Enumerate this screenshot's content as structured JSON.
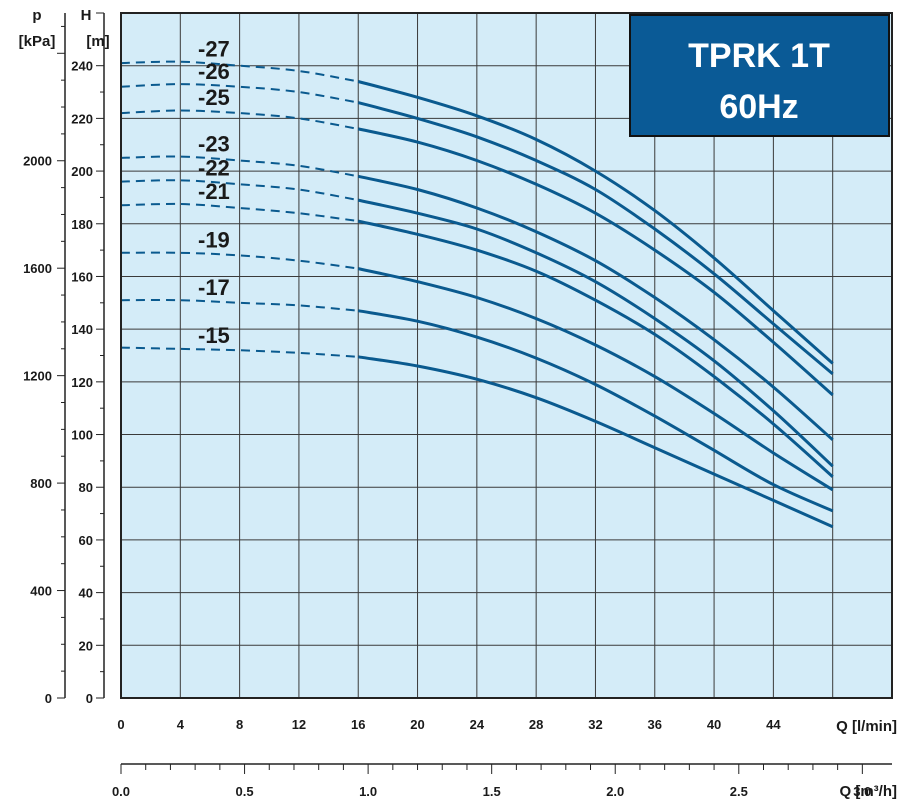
{
  "chart_data": {
    "type": "line",
    "title_lines": [
      "TPRK 1T",
      "60Hz"
    ],
    "x_axis": {
      "label": "Q [l/min]",
      "range": [
        0,
        52
      ],
      "ticks": [
        0,
        4,
        8,
        12,
        16,
        20,
        24,
        28,
        32,
        36,
        40,
        44
      ]
    },
    "x2_axis": {
      "label": "Q [m³/h]",
      "range": [
        0,
        3.12
      ],
      "ticks": [
        "0.0",
        "0.5",
        "1.0",
        "1.5",
        "2.0",
        "2.5",
        "3.0"
      ],
      "tick_values": [
        0,
        0.5,
        1.0,
        1.5,
        2.0,
        2.5,
        3.0
      ]
    },
    "y_axis": {
      "label_line1": "H",
      "label_line2": "[m]",
      "range": [
        0,
        260
      ],
      "ticks": [
        0,
        20,
        40,
        60,
        80,
        100,
        120,
        140,
        160,
        180,
        200,
        220,
        240
      ]
    },
    "y2_axis": {
      "label_line1": "p",
      "label_line2": "[kPa]",
      "range": [
        0,
        2550
      ],
      "ticks": [
        0,
        400,
        800,
        1200,
        1600,
        2000
      ]
    },
    "grid": true,
    "curve_color": "#0a5a8f",
    "plot_background": "#d4ecf8",
    "title_box_color": "#0a5a96",
    "dashed_until_q": 16,
    "series": [
      {
        "name": "-27",
        "points": [
          [
            0,
            241
          ],
          [
            4,
            241.5
          ],
          [
            8,
            240
          ],
          [
            12,
            238
          ],
          [
            16,
            234
          ],
          [
            20,
            228
          ],
          [
            24,
            221
          ],
          [
            28,
            212
          ],
          [
            32,
            200
          ],
          [
            36,
            185
          ],
          [
            40,
            167
          ],
          [
            44,
            147
          ],
          [
            48,
            127
          ]
        ]
      },
      {
        "name": "-26",
        "points": [
          [
            0,
            232
          ],
          [
            4,
            233
          ],
          [
            8,
            232
          ],
          [
            12,
            230
          ],
          [
            16,
            226
          ],
          [
            20,
            220
          ],
          [
            24,
            213
          ],
          [
            28,
            204
          ],
          [
            32,
            193
          ],
          [
            36,
            178
          ],
          [
            40,
            161
          ],
          [
            44,
            142
          ],
          [
            48,
            123
          ]
        ]
      },
      {
        "name": "-25",
        "points": [
          [
            0,
            222
          ],
          [
            4,
            223
          ],
          [
            8,
            222
          ],
          [
            12,
            220
          ],
          [
            16,
            216
          ],
          [
            20,
            211
          ],
          [
            24,
            204
          ],
          [
            28,
            195
          ],
          [
            32,
            184
          ],
          [
            36,
            170
          ],
          [
            40,
            154
          ],
          [
            44,
            135
          ],
          [
            48,
            115
          ]
        ]
      },
      {
        "name": "-23",
        "points": [
          [
            0,
            205
          ],
          [
            4,
            205.5
          ],
          [
            8,
            204
          ],
          [
            12,
            202
          ],
          [
            16,
            198
          ],
          [
            20,
            193
          ],
          [
            24,
            186
          ],
          [
            28,
            177
          ],
          [
            32,
            166
          ],
          [
            36,
            152
          ],
          [
            40,
            136
          ],
          [
            44,
            118
          ],
          [
            48,
            98
          ]
        ]
      },
      {
        "name": "-22",
        "points": [
          [
            0,
            196
          ],
          [
            4,
            196.5
          ],
          [
            8,
            195
          ],
          [
            12,
            193
          ],
          [
            16,
            189
          ],
          [
            20,
            184
          ],
          [
            24,
            178
          ],
          [
            28,
            169
          ],
          [
            32,
            158
          ],
          [
            36,
            144
          ],
          [
            40,
            128
          ],
          [
            44,
            109
          ],
          [
            48,
            88
          ]
        ]
      },
      {
        "name": "-21",
        "points": [
          [
            0,
            187
          ],
          [
            4,
            187.5
          ],
          [
            8,
            186
          ],
          [
            12,
            184
          ],
          [
            16,
            181
          ],
          [
            20,
            176
          ],
          [
            24,
            170
          ],
          [
            28,
            162
          ],
          [
            32,
            151
          ],
          [
            36,
            138
          ],
          [
            40,
            122
          ],
          [
            44,
            104
          ],
          [
            48,
            84
          ]
        ]
      },
      {
        "name": "-19",
        "points": [
          [
            0,
            169
          ],
          [
            4,
            169
          ],
          [
            8,
            168
          ],
          [
            12,
            166
          ],
          [
            16,
            163
          ],
          [
            20,
            158
          ],
          [
            24,
            152
          ],
          [
            28,
            144
          ],
          [
            32,
            134
          ],
          [
            36,
            122
          ],
          [
            40,
            108
          ],
          [
            44,
            93
          ],
          [
            48,
            79
          ]
        ]
      },
      {
        "name": "-17",
        "points": [
          [
            0,
            151
          ],
          [
            4,
            151
          ],
          [
            8,
            150
          ],
          [
            12,
            149
          ],
          [
            16,
            147
          ],
          [
            20,
            143
          ],
          [
            24,
            137
          ],
          [
            28,
            129
          ],
          [
            32,
            119
          ],
          [
            36,
            107
          ],
          [
            40,
            94
          ],
          [
            44,
            81
          ],
          [
            48,
            71
          ]
        ]
      },
      {
        "name": "-15",
        "points": [
          [
            0,
            133
          ],
          [
            4,
            132.5
          ],
          [
            8,
            132
          ],
          [
            12,
            131
          ],
          [
            16,
            129.5
          ],
          [
            20,
            126
          ],
          [
            24,
            121
          ],
          [
            28,
            114
          ],
          [
            32,
            105
          ],
          [
            36,
            95
          ],
          [
            40,
            85
          ],
          [
            44,
            75
          ],
          [
            48,
            65
          ]
        ]
      }
    ]
  }
}
